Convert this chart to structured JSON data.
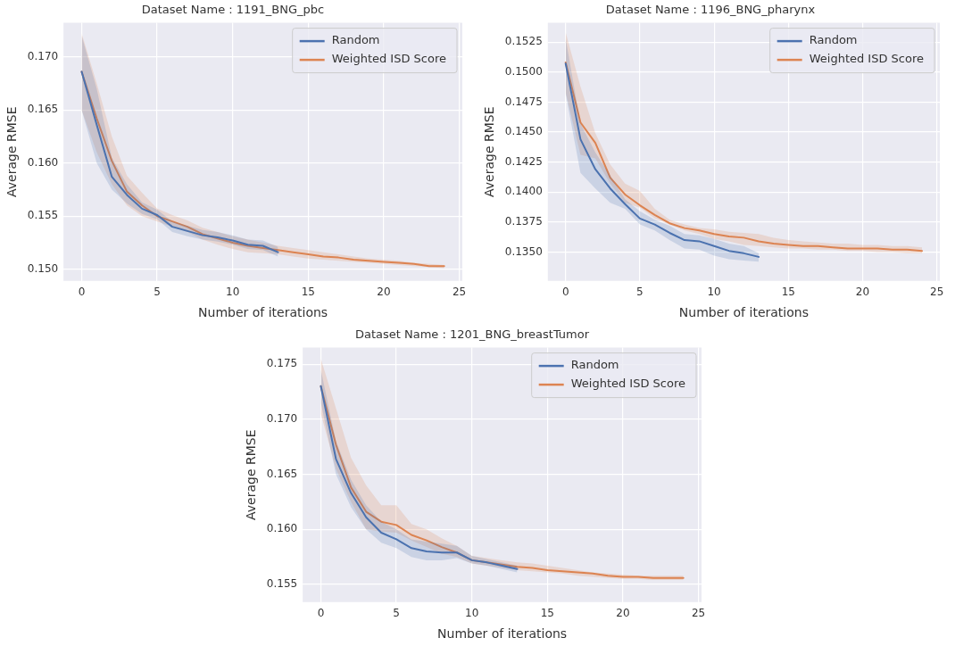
{
  "chart_data": [
    {
      "type": "line",
      "title": "Dataset Name : 1191_BNG_pbc",
      "xlabel": "Number of iterations",
      "ylabel": "Average RMSE",
      "x": [
        0,
        1,
        2,
        3,
        4,
        5,
        6,
        7,
        8,
        9,
        10,
        11,
        12,
        13,
        14,
        15,
        16,
        17,
        18,
        19,
        20,
        21,
        22,
        23,
        24
      ],
      "xlim": [
        -1.2,
        25.2
      ],
      "xticks": [
        0,
        5,
        10,
        15,
        20,
        25
      ],
      "ylim": [
        0.1489,
        0.1732
      ],
      "yticks": [
        {
          "value": 0.15,
          "label": "0.150"
        },
        {
          "value": 0.155,
          "label": "0.155"
        },
        {
          "value": 0.16,
          "label": "0.160"
        },
        {
          "value": 0.165,
          "label": "0.165"
        },
        {
          "value": 0.17,
          "label": "0.170"
        }
      ],
      "grid": true,
      "legend": "top right",
      "series": [
        {
          "name": "Random",
          "color": "#4c72b0",
          "values": [
            0.1686,
            0.1636,
            0.1587,
            0.157,
            0.1557,
            0.1551,
            0.154,
            0.1536,
            0.1532,
            0.153,
            0.1527,
            0.1523,
            0.1522,
            0.1516,
            null,
            null,
            null,
            null,
            null,
            null,
            null,
            null,
            null,
            null,
            null
          ],
          "lower": [
            0.165,
            0.16,
            0.1575,
            0.1562,
            0.1552,
            0.1547,
            0.1535,
            0.1531,
            0.1528,
            0.1526,
            0.1523,
            0.1519,
            0.1518,
            0.1512,
            null,
            null,
            null,
            null,
            null,
            null,
            null,
            null,
            null,
            null,
            null
          ],
          "upper": [
            0.172,
            0.167,
            0.1605,
            0.158,
            0.1563,
            0.1556,
            0.1545,
            0.1541,
            0.1537,
            0.1535,
            0.1532,
            0.1528,
            0.1527,
            0.1521,
            null,
            null,
            null,
            null,
            null,
            null,
            null,
            null,
            null,
            null,
            null
          ]
        },
        {
          "name": "Weighted ISD Score",
          "color": "#dd8452",
          "values": [
            0.1686,
            0.1642,
            0.1602,
            0.1573,
            0.156,
            0.155,
            0.1545,
            0.154,
            0.1533,
            0.1529,
            0.1525,
            0.1522,
            0.152,
            0.1518,
            0.1516,
            0.1514,
            0.1512,
            0.1511,
            0.1509,
            0.1508,
            0.1507,
            0.1506,
            0.1505,
            0.1503,
            0.1503
          ],
          "lower": [
            0.165,
            0.161,
            0.158,
            0.156,
            0.155,
            0.1545,
            0.154,
            0.1535,
            0.1528,
            0.1523,
            0.1519,
            0.1516,
            0.1515,
            0.1514,
            0.1512,
            0.151,
            0.1509,
            0.1508,
            0.1507,
            0.1506,
            0.1505,
            0.1504,
            0.1503,
            0.1502,
            0.1501
          ],
          "upper": [
            0.1722,
            0.1675,
            0.1625,
            0.1588,
            0.1572,
            0.1557,
            0.1551,
            0.1546,
            0.1539,
            0.1535,
            0.1531,
            0.1528,
            0.1525,
            0.1522,
            0.152,
            0.1518,
            0.1516,
            0.1514,
            0.1512,
            0.151,
            0.1509,
            0.1508,
            0.1506,
            0.1505,
            0.1504
          ]
        }
      ]
    },
    {
      "type": "line",
      "title": "Dataset Name : 1196_BNG_pharynx",
      "xlabel": "Number of iterations",
      "ylabel": "Average RMSE",
      "x": [
        0,
        1,
        2,
        3,
        4,
        5,
        6,
        7,
        8,
        9,
        10,
        11,
        12,
        13,
        14,
        15,
        16,
        17,
        18,
        19,
        20,
        21,
        22,
        23,
        24
      ],
      "xlim": [
        -1.2,
        25.2
      ],
      "xticks": [
        0,
        5,
        10,
        15,
        20,
        25
      ],
      "ylim": [
        0.1326,
        0.1541
      ],
      "yticks": [
        {
          "value": 0.135,
          "label": "0.1350"
        },
        {
          "value": 0.1375,
          "label": "0.1375"
        },
        {
          "value": 0.14,
          "label": "0.1400"
        },
        {
          "value": 0.1425,
          "label": "0.1425"
        },
        {
          "value": 0.145,
          "label": "0.1450"
        },
        {
          "value": 0.1475,
          "label": "0.1475"
        },
        {
          "value": 0.15,
          "label": "0.1500"
        },
        {
          "value": 0.1525,
          "label": "0.1525"
        }
      ],
      "grid": true,
      "legend": "top right",
      "series": [
        {
          "name": "Random",
          "color": "#4c72b0",
          "values": [
            0.1507,
            0.1444,
            0.1419,
            0.1403,
            0.139,
            0.1378,
            0.1373,
            0.1366,
            0.136,
            0.1359,
            0.1355,
            0.1351,
            0.1349,
            0.1346,
            null,
            null,
            null,
            null,
            null,
            null,
            null,
            null,
            null,
            null,
            null
          ],
          "lower": [
            0.1482,
            0.1416,
            0.1403,
            0.1391,
            0.1386,
            0.1373,
            0.1368,
            0.136,
            0.1353,
            0.1352,
            0.1347,
            0.1344,
            0.1343,
            0.1342,
            null,
            null,
            null,
            null,
            null,
            null,
            null,
            null,
            null,
            null,
            null
          ],
          "upper": [
            0.1528,
            0.1457,
            0.1433,
            0.1414,
            0.1394,
            0.1384,
            0.1377,
            0.1372,
            0.1365,
            0.1364,
            0.1361,
            0.1357,
            0.1355,
            0.1349,
            null,
            null,
            null,
            null,
            null,
            null,
            null,
            null,
            null,
            null,
            null
          ]
        },
        {
          "name": "Weighted ISD Score",
          "color": "#dd8452",
          "values": [
            0.1508,
            0.1458,
            0.1441,
            0.1412,
            0.1398,
            0.1389,
            0.1381,
            0.1374,
            0.137,
            0.1368,
            0.1365,
            0.1363,
            0.1362,
            0.1359,
            0.1357,
            0.1356,
            0.1355,
            0.1355,
            0.1354,
            0.1353,
            0.1353,
            0.1353,
            0.1352,
            0.1352,
            0.1351
          ],
          "lower": [
            0.1483,
            0.1431,
            0.1428,
            0.1407,
            0.1391,
            0.1387,
            0.1378,
            0.1373,
            0.1368,
            0.1365,
            0.1361,
            0.1359,
            0.1356,
            0.1355,
            0.1354,
            0.1353,
            0.1353,
            0.1352,
            0.1352,
            0.1351,
            0.1351,
            0.135,
            0.135,
            0.1349,
            0.1349
          ],
          "upper": [
            0.1533,
            0.1488,
            0.1449,
            0.1423,
            0.1407,
            0.1401,
            0.1386,
            0.1377,
            0.1373,
            0.137,
            0.1369,
            0.1367,
            0.1366,
            0.1365,
            0.1362,
            0.136,
            0.1359,
            0.1358,
            0.1357,
            0.1357,
            0.1356,
            0.1356,
            0.1355,
            0.1355,
            0.1354
          ]
        }
      ]
    },
    {
      "type": "line",
      "title": "Dataset Name : 1201_BNG_breastTumor",
      "xlabel": "Number of iterations",
      "ylabel": "Average RMSE",
      "x": [
        0,
        1,
        2,
        3,
        4,
        5,
        6,
        7,
        8,
        9,
        10,
        11,
        12,
        13,
        14,
        15,
        16,
        17,
        18,
        19,
        20,
        21,
        22,
        23,
        24
      ],
      "xlim": [
        -1.2,
        25.2
      ],
      "xticks": [
        0,
        5,
        10,
        15,
        20,
        25
      ],
      "ylim": [
        0.1534,
        0.1765
      ],
      "yticks": [
        {
          "value": 0.155,
          "label": "0.155"
        },
        {
          "value": 0.16,
          "label": "0.160"
        },
        {
          "value": 0.165,
          "label": "0.165"
        },
        {
          "value": 0.17,
          "label": "0.170"
        },
        {
          "value": 0.175,
          "label": "0.175"
        }
      ],
      "grid": true,
      "legend": "top right",
      "series": [
        {
          "name": "Random",
          "color": "#4c72b0",
          "values": [
            0.173,
            0.1664,
            0.1633,
            0.1611,
            0.1597,
            0.1591,
            0.1583,
            0.158,
            0.1579,
            0.1579,
            0.1572,
            0.157,
            0.1567,
            0.1564,
            null,
            null,
            null,
            null,
            null,
            null,
            null,
            null,
            null,
            null,
            null
          ],
          "lower": [
            0.1715,
            0.165,
            0.162,
            0.16,
            0.1588,
            0.1583,
            0.1575,
            0.1572,
            0.1572,
            0.1574,
            0.1569,
            0.1567,
            0.1564,
            0.1561,
            null,
            null,
            null,
            null,
            null,
            null,
            null,
            null,
            null,
            null,
            null
          ],
          "upper": [
            0.1745,
            0.168,
            0.1645,
            0.1622,
            0.1607,
            0.16,
            0.1591,
            0.1589,
            0.1587,
            0.1585,
            0.1576,
            0.1573,
            0.157,
            0.1567,
            null,
            null,
            null,
            null,
            null,
            null,
            null,
            null,
            null,
            null,
            null
          ]
        },
        {
          "name": "Weighted ISD Score",
          "color": "#dd8452",
          "values": [
            0.173,
            0.1677,
            0.1638,
            0.1616,
            0.1607,
            0.1604,
            0.1595,
            0.159,
            0.1584,
            0.1579,
            0.1572,
            0.157,
            0.1568,
            0.1566,
            0.1565,
            0.1563,
            0.1562,
            0.1561,
            0.156,
            0.1558,
            0.1557,
            0.1557,
            0.1556,
            0.1556,
            0.1556
          ],
          "lower": [
            0.1705,
            0.1655,
            0.1625,
            0.16,
            0.1598,
            0.1597,
            0.159,
            0.1584,
            0.1578,
            0.1575,
            0.1569,
            0.1567,
            0.1565,
            0.1563,
            0.1562,
            0.1561,
            0.156,
            0.1558,
            0.1557,
            0.1556,
            0.1555,
            0.1555,
            0.1554,
            0.1554,
            0.1554
          ],
          "upper": [
            0.1755,
            0.171,
            0.1665,
            0.164,
            0.1622,
            0.1622,
            0.1605,
            0.16,
            0.1592,
            0.1585,
            0.1576,
            0.1574,
            0.1572,
            0.157,
            0.1569,
            0.1567,
            0.1565,
            0.1563,
            0.1561,
            0.156,
            0.1559,
            0.1558,
            0.1558,
            0.1558,
            0.1558
          ]
        }
      ]
    }
  ]
}
